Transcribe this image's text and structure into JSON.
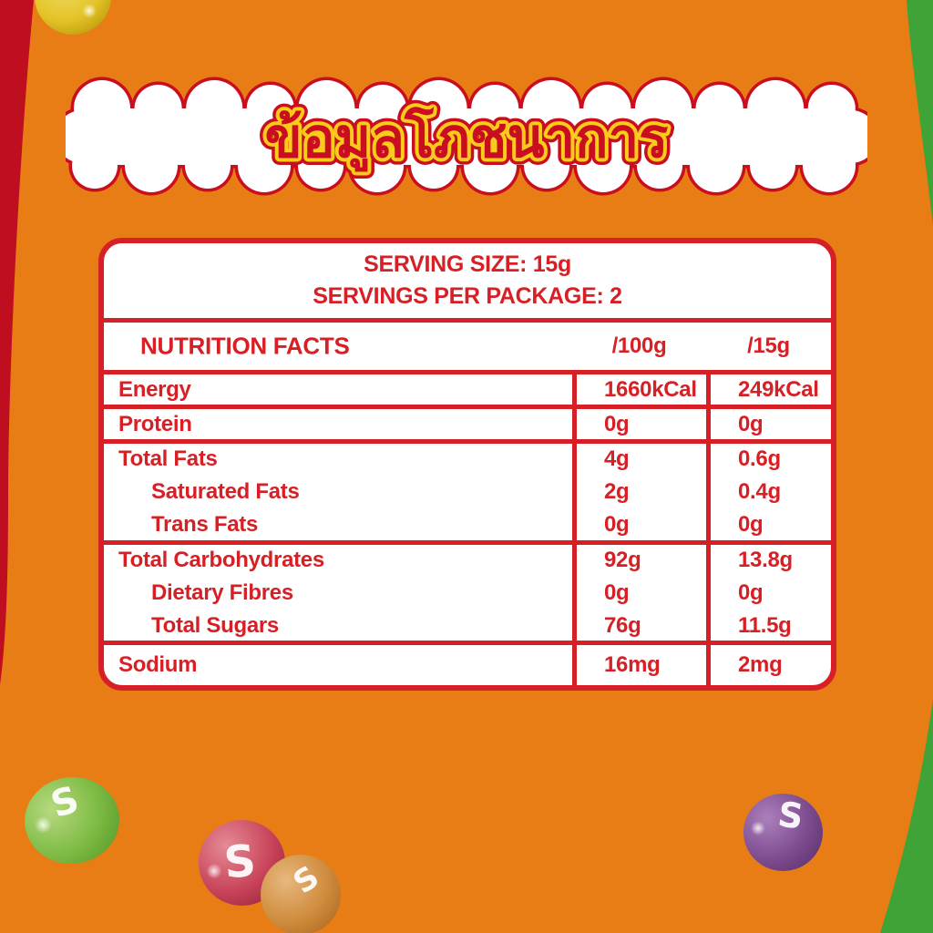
{
  "banner": {
    "title": "ข้อมูลโภชนาการ"
  },
  "panel": {
    "serving_size": "SERVING SIZE: 15g",
    "servings_per_package": "SERVINGS PER PACKAGE: 2",
    "columns": {
      "name": "NUTRITION FACTS",
      "per_100g": "/100g",
      "per_15g": "/15g"
    },
    "groups": [
      {
        "rows": [
          {
            "label": "Energy",
            "per_100g": "1660kCal",
            "per_15g": "249kCal",
            "indent": false
          }
        ]
      },
      {
        "rows": [
          {
            "label": "Protein",
            "per_100g": "0g",
            "per_15g": "0g",
            "indent": false
          }
        ]
      },
      {
        "rows": [
          {
            "label": "Total Fats",
            "per_100g": "4g",
            "per_15g": "0.6g",
            "indent": false
          },
          {
            "label": "Saturated Fats",
            "per_100g": "2g",
            "per_15g": "0.4g",
            "indent": true
          },
          {
            "label": "Trans Fats",
            "per_100g": "0g",
            "per_15g": "0g",
            "indent": true
          }
        ]
      },
      {
        "rows": [
          {
            "label": "Total Carbohydrates",
            "per_100g": "92g",
            "per_15g": "13.8g",
            "indent": false
          },
          {
            "label": "Dietary Fibres",
            "per_100g": "0g",
            "per_15g": "0g",
            "indent": true
          },
          {
            "label": "Total Sugars",
            "per_100g": "76g",
            "per_15g": "11.5g",
            "indent": true
          }
        ]
      },
      {
        "rows": [
          {
            "label": "Sodium",
            "per_100g": "16mg",
            "per_15g": "2mg",
            "indent": false
          }
        ]
      }
    ]
  },
  "candies": {
    "logo_letter": "S"
  },
  "colors": {
    "background_orange": "#E87C15",
    "side_red": "#BE0E1F",
    "side_green": "#3FA338",
    "table_red": "#D72026",
    "title_red": "#C90E1F",
    "title_yellow": "#FBCB1C",
    "candy_yellow": "#E3C327",
    "candy_green": "#7CBA42",
    "candy_red": "#C84359",
    "candy_orange": "#CE8B3B",
    "candy_purple": "#7C4B8E"
  }
}
